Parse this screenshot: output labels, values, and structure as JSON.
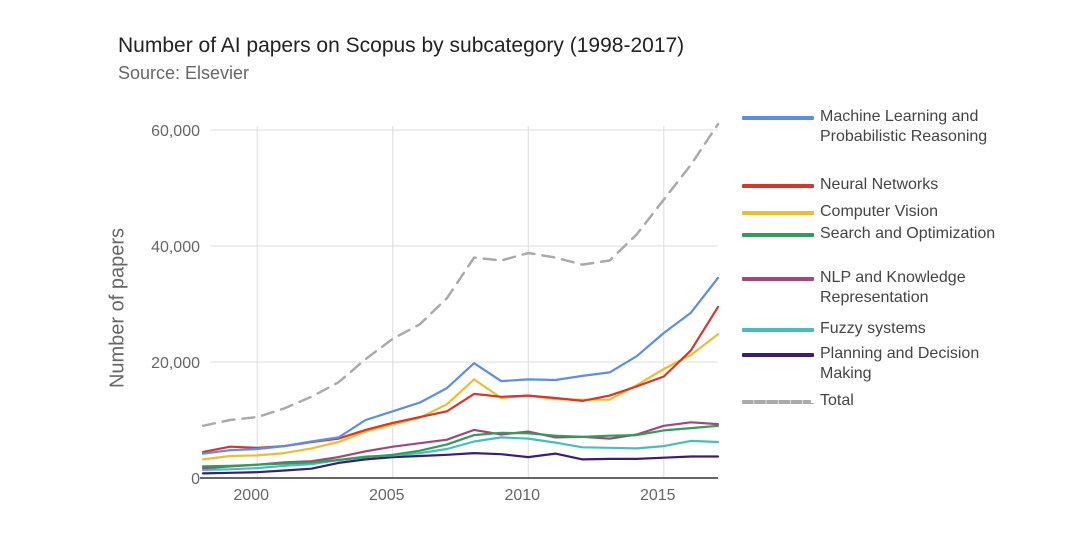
{
  "chart_data": {
    "type": "line",
    "title": "Number of AI papers on Scopus by subcategory (1998-2017)",
    "subtitle": "Source: Elsevier",
    "ylabel": "Number of papers",
    "xlabel": "",
    "xlim": [
      1998,
      2017
    ],
    "ylim": [
      0,
      60000
    ],
    "x_ticks": [
      2000,
      2005,
      2010,
      2015
    ],
    "y_ticks": [
      0,
      20000,
      40000,
      60000
    ],
    "y_tick_labels": [
      "0",
      "20,000",
      "40,000",
      "60,000"
    ],
    "grid": true,
    "legend_position": "right",
    "x": [
      1998,
      1999,
      2000,
      2001,
      2002,
      2003,
      2004,
      2005,
      2006,
      2007,
      2008,
      2009,
      2010,
      2011,
      2012,
      2013,
      2014,
      2015,
      2016,
      2017
    ],
    "series": [
      {
        "name": "Machine Learning and Probabilistic Reasoning",
        "color": "#5b8ee6",
        "dash": false,
        "values": [
          4200,
          4800,
          5000,
          5500,
          6300,
          7000,
          10000,
          11500,
          13000,
          15500,
          19800,
          16700,
          17000,
          16900,
          17600,
          18200,
          21000,
          25000,
          28500,
          34500
        ]
      },
      {
        "name": "Neural Networks",
        "color": "#d9352b",
        "dash": false,
        "values": [
          4500,
          5400,
          5200,
          5500,
          6200,
          6800,
          8300,
          9500,
          10500,
          11500,
          14500,
          14000,
          14200,
          13800,
          13300,
          14200,
          15800,
          17500,
          22000,
          29500
        ]
      },
      {
        "name": "Computer Vision",
        "color": "#f0bd2a",
        "dash": false,
        "values": [
          3200,
          3800,
          3900,
          4300,
          5100,
          6200,
          8000,
          9200,
          10400,
          12700,
          17000,
          13800,
          14200,
          13600,
          13500,
          13500,
          16000,
          18800,
          21200,
          24800
        ]
      },
      {
        "name": "Search and Optimization",
        "color": "#2e9e5a",
        "dash": false,
        "values": [
          2000,
          2100,
          2300,
          2500,
          2700,
          3100,
          3600,
          4000,
          4700,
          5800,
          7400,
          7800,
          7700,
          7300,
          7100,
          7300,
          7400,
          8200,
          8600,
          9000
        ]
      },
      {
        "name": "NLP and Knowledge Representation",
        "color": "#a4467a",
        "dash": false,
        "values": [
          1700,
          2000,
          2300,
          2700,
          2900,
          3600,
          4600,
          5400,
          6000,
          6600,
          8300,
          7500,
          8000,
          7000,
          7100,
          6800,
          7500,
          9000,
          9600,
          9300
        ]
      },
      {
        "name": "Fuzzy systems",
        "color": "#44c0bc",
        "dash": false,
        "values": [
          1400,
          1500,
          1700,
          2100,
          2400,
          3100,
          3700,
          3900,
          4300,
          5000,
          6300,
          7000,
          6800,
          6100,
          5300,
          5200,
          5100,
          5500,
          6400,
          6200
        ]
      },
      {
        "name": "Planning and Decision Making",
        "color": "#3a1d78",
        "dash": false,
        "values": [
          800,
          900,
          1000,
          1300,
          1600,
          2600,
          3200,
          3600,
          3800,
          4000,
          4300,
          4100,
          3600,
          4200,
          3200,
          3300,
          3300,
          3500,
          3700,
          3700
        ]
      },
      {
        "name": "Total",
        "color": "#aaaaaa",
        "dash": true,
        "values": [
          9000,
          10000,
          10500,
          12000,
          14000,
          16500,
          20500,
          24000,
          26500,
          31000,
          38000,
          37500,
          38800,
          38000,
          36800,
          37500,
          42000,
          48000,
          54000,
          61000
        ]
      }
    ]
  }
}
